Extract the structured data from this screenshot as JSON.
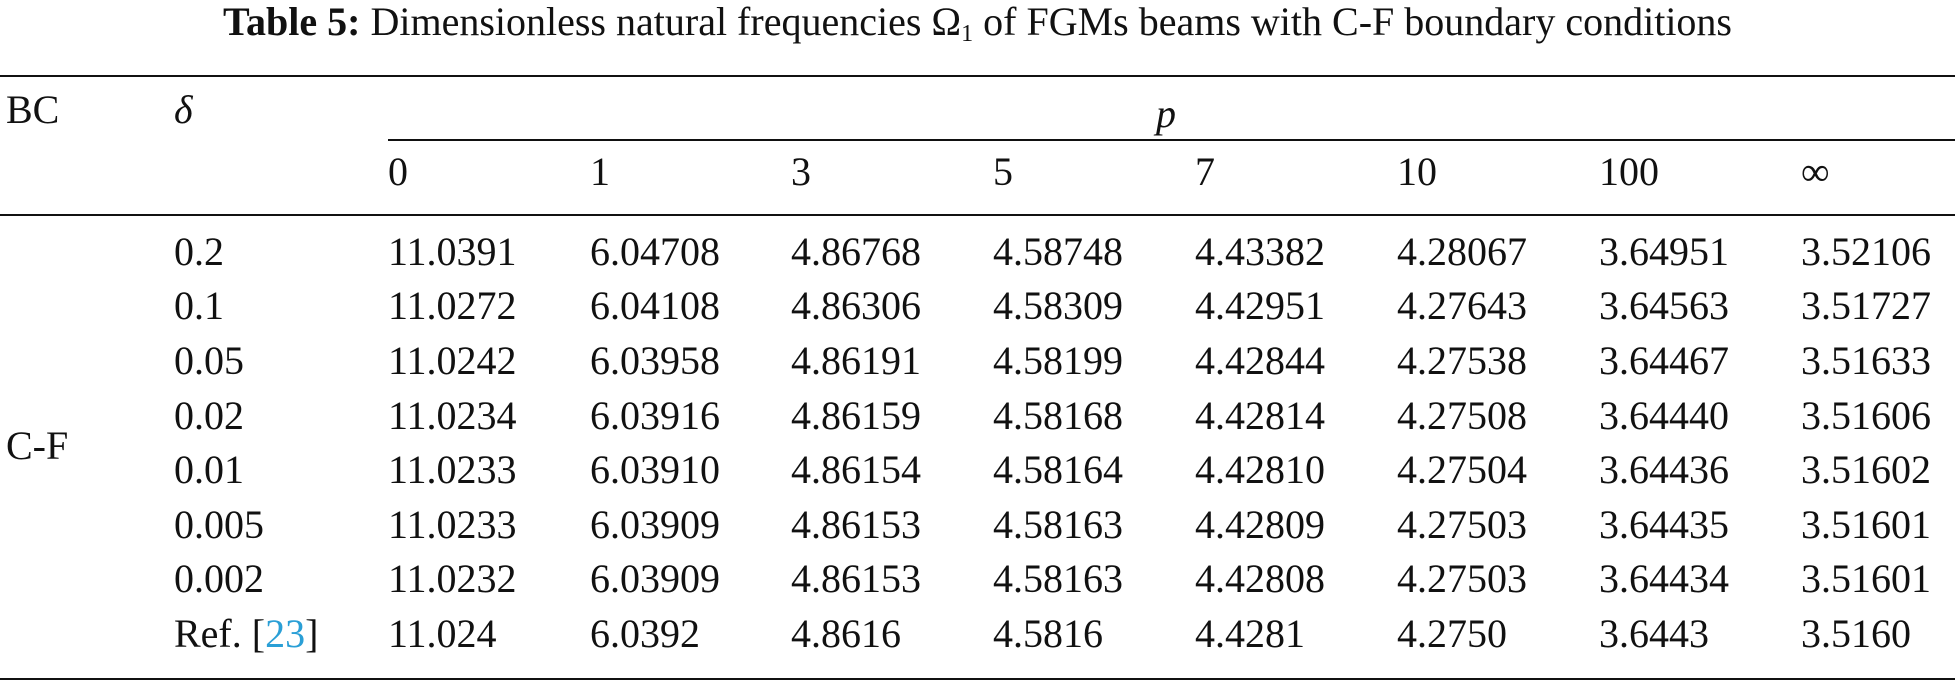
{
  "caption": {
    "label": "Table 5:",
    "text_before": "Dimensionless natural frequencies Ω",
    "subscript": "1",
    "text_after": " of FGMs beams with C-F boundary conditions"
  },
  "table": {
    "header": {
      "bc": "BC",
      "delta": "δ",
      "group": "p",
      "p_values": [
        "0",
        "1",
        "3",
        "5",
        "7",
        "10",
        "100",
        "∞"
      ]
    },
    "bc_value": "C-F",
    "rows": [
      {
        "delta": "0.2",
        "values": [
          "11.0391",
          "6.04708",
          "4.86768",
          "4.58748",
          "4.43382",
          "4.28067",
          "3.64951",
          "3.52106"
        ]
      },
      {
        "delta": "0.1",
        "values": [
          "11.0272",
          "6.04108",
          "4.86306",
          "4.58309",
          "4.42951",
          "4.27643",
          "3.64563",
          "3.51727"
        ]
      },
      {
        "delta": "0.05",
        "values": [
          "11.0242",
          "6.03958",
          "4.86191",
          "4.58199",
          "4.42844",
          "4.27538",
          "3.64467",
          "3.51633"
        ]
      },
      {
        "delta": "0.02",
        "values": [
          "11.0234",
          "6.03916",
          "4.86159",
          "4.58168",
          "4.42814",
          "4.27508",
          "3.64440",
          "3.51606"
        ]
      },
      {
        "delta": "0.01",
        "values": [
          "11.0233",
          "6.03910",
          "4.86154",
          "4.58164",
          "4.42810",
          "4.27504",
          "3.64436",
          "3.51602"
        ]
      },
      {
        "delta": "0.005",
        "values": [
          "11.0233",
          "6.03909",
          "4.86153",
          "4.58163",
          "4.42809",
          "4.27503",
          "3.64435",
          "3.51601"
        ]
      },
      {
        "delta": "0.002",
        "values": [
          "11.0232",
          "6.03909",
          "4.86153",
          "4.58163",
          "4.42808",
          "4.27503",
          "3.64434",
          "3.51601"
        ]
      }
    ],
    "ref_row": {
      "label_prefix": "Ref. [",
      "ref_number": "23",
      "label_suffix": "]",
      "values": [
        "11.024",
        "6.0392",
        "4.8616",
        "4.5816",
        "4.4281",
        "4.2750",
        "3.6443",
        "3.5160"
      ]
    }
  }
}
